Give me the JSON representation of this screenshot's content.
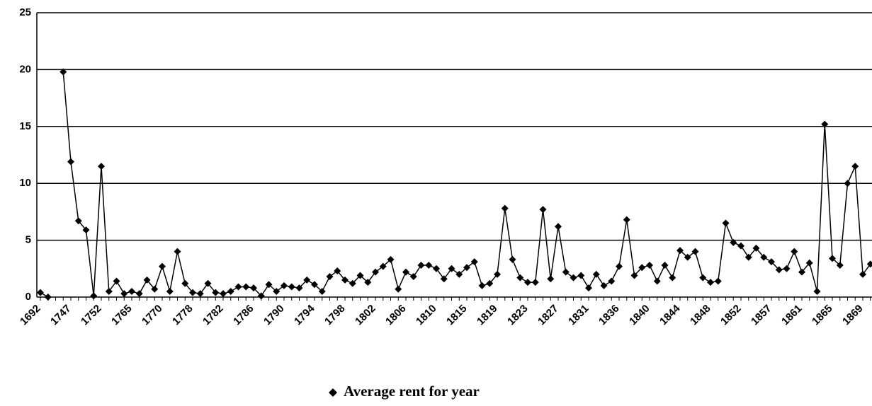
{
  "chart_data": {
    "type": "line",
    "categories": [
      "1692",
      null,
      null,
      null,
      "1747",
      null,
      null,
      null,
      "1752",
      null,
      null,
      null,
      "1765",
      null,
      null,
      null,
      "1770",
      null,
      null,
      null,
      "1778",
      null,
      null,
      null,
      "1782",
      null,
      null,
      null,
      "1786",
      null,
      null,
      null,
      "1790",
      null,
      null,
      null,
      "1794",
      null,
      null,
      null,
      "1798",
      null,
      null,
      null,
      "1802",
      null,
      null,
      null,
      "1806",
      null,
      null,
      null,
      "1810",
      null,
      null,
      null,
      "1815",
      null,
      null,
      null,
      "1819",
      null,
      null,
      null,
      "1823",
      null,
      null,
      null,
      "1827",
      null,
      null,
      null,
      "1831",
      null,
      null,
      null,
      "1836",
      null,
      null,
      null,
      "1840",
      null,
      null,
      null,
      "1844",
      null,
      null,
      null,
      "1848",
      null,
      null,
      null,
      "1852",
      null,
      null,
      null,
      "1857",
      null,
      null,
      null,
      "1861",
      null,
      null,
      null,
      "1865",
      null,
      null,
      null,
      "1869",
      null
    ],
    "series": [
      {
        "name": "Average rent for year",
        "color": "#000000",
        "values": [
          0.4,
          0.0,
          null,
          19.8,
          11.9,
          6.7,
          5.9,
          0.1,
          11.5,
          0.5,
          1.4,
          0.3,
          0.5,
          0.3,
          1.5,
          0.7,
          2.7,
          0.5,
          4.0,
          1.2,
          0.4,
          0.3,
          1.2,
          0.4,
          0.3,
          0.5,
          0.9,
          0.9,
          0.8,
          0.1,
          1.1,
          0.5,
          1.0,
          0.9,
          0.8,
          1.5,
          1.1,
          0.5,
          1.8,
          2.3,
          1.5,
          1.2,
          1.9,
          1.3,
          2.2,
          2.7,
          3.3,
          0.7,
          2.2,
          1.8,
          2.8,
          2.8,
          2.5,
          1.6,
          2.5,
          2.0,
          2.6,
          3.1,
          1.0,
          1.2,
          2.0,
          7.8,
          3.3,
          1.7,
          1.3,
          1.3,
          7.7,
          1.6,
          6.2,
          2.2,
          1.7,
          1.9,
          0.8,
          2.0,
          1.0,
          1.4,
          2.7,
          6.8,
          1.9,
          2.6,
          2.8,
          1.4,
          2.8,
          1.7,
          4.1,
          3.5,
          4.0,
          1.7,
          1.3,
          1.4,
          6.5,
          4.8,
          4.5,
          3.5,
          4.3,
          3.5,
          3.1,
          2.4,
          2.5,
          4.0,
          2.2,
          3.0,
          0.5,
          15.2,
          3.4,
          2.8,
          10.0,
          11.5,
          2.0,
          2.9
        ]
      }
    ],
    "ylim": [
      0,
      25
    ],
    "yticks": [
      0,
      5,
      10,
      15,
      20,
      25
    ],
    "grid": true,
    "legend": "bottom"
  }
}
